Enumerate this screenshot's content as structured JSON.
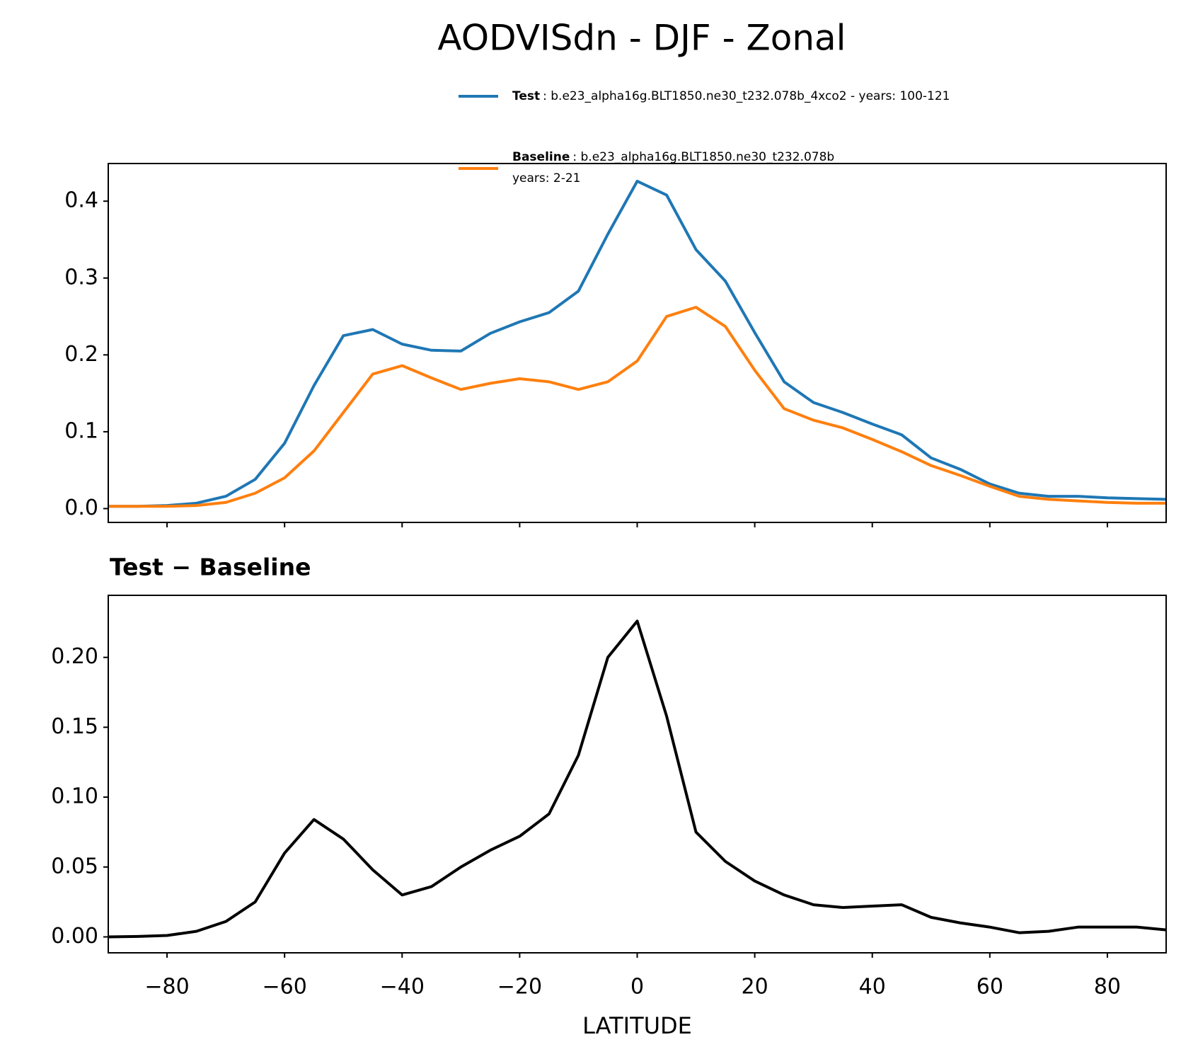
{
  "title": "AODVISdn - DJF - Zonal",
  "chart_data": [
    {
      "type": "line",
      "x": [
        -90,
        -85,
        -80,
        -75,
        -70,
        -65,
        -60,
        -55,
        -50,
        -45,
        -40,
        -35,
        -30,
        -25,
        -20,
        -15,
        -10,
        -5,
        0,
        5,
        10,
        15,
        20,
        25,
        30,
        35,
        40,
        45,
        50,
        55,
        60,
        65,
        70,
        75,
        80,
        85,
        90
      ],
      "xlim": [
        -90,
        90
      ],
      "xticks": [
        {
          "value": -80,
          "label": "−80"
        },
        {
          "value": -60,
          "label": "−60"
        },
        {
          "value": -40,
          "label": "−40"
        },
        {
          "value": -20,
          "label": "−20"
        },
        0,
        20,
        40,
        60,
        80
      ],
      "xtick_labels": false,
      "ylim": [
        -0.018,
        0.449
      ],
      "yticks": [
        {
          "value": 0,
          "label": "0.0"
        },
        0.1,
        0.2,
        0.3,
        0.4
      ],
      "series": [
        {
          "name": "Test",
          "description": [
            ": b.e23_alpha16g.BLT1850.ne30_t232.078b_4xco2 - years: 100-121"
          ],
          "color": "#1f77b4",
          "values": [
            0.003,
            0.003,
            0.004,
            0.007,
            0.016,
            0.038,
            0.085,
            0.16,
            0.225,
            0.233,
            0.214,
            0.206,
            0.205,
            0.228,
            0.243,
            0.255,
            0.283,
            0.357,
            0.426,
            0.408,
            0.337,
            0.296,
            0.229,
            0.165,
            0.138,
            0.125,
            0.11,
            0.096,
            0.066,
            0.051,
            0.032,
            0.02,
            0.016,
            0.016,
            0.014,
            0.013,
            0.012
          ]
        },
        {
          "name": "Baseline",
          "description": [
            ": b.e23_alpha16g.BLT1850.ne30_t232.078b",
            "years: 2-21"
          ],
          "color": "#ff7f0e",
          "values": [
            0.003,
            0.003,
            0.003,
            0.004,
            0.008,
            0.02,
            0.04,
            0.075,
            0.125,
            0.175,
            0.186,
            0.17,
            0.155,
            0.163,
            0.169,
            0.165,
            0.155,
            0.165,
            0.192,
            0.25,
            0.262,
            0.237,
            0.18,
            0.13,
            0.115,
            0.105,
            0.09,
            0.074,
            0.056,
            0.043,
            0.029,
            0.016,
            0.012,
            0.01,
            0.008,
            0.007,
            0.007
          ]
        }
      ]
    },
    {
      "type": "line",
      "title": "Test − Baseline",
      "xlabel": "LATITUDE",
      "x": [
        -90,
        -85,
        -80,
        -75,
        -70,
        -65,
        -60,
        -55,
        -50,
        -45,
        -40,
        -35,
        -30,
        -25,
        -20,
        -15,
        -10,
        -5,
        0,
        5,
        10,
        15,
        20,
        25,
        30,
        35,
        40,
        45,
        50,
        55,
        60,
        65,
        70,
        75,
        80,
        85,
        90
      ],
      "xlim": [
        -90,
        90
      ],
      "xticks": [
        {
          "value": -80,
          "label": "−80"
        },
        {
          "value": -60,
          "label": "−60"
        },
        {
          "value": -40,
          "label": "−40"
        },
        {
          "value": -20,
          "label": "−20"
        },
        0,
        20,
        40,
        60,
        80
      ],
      "xtick_labels": true,
      "ylim": [
        -0.0114,
        0.2444
      ],
      "yticks": [
        {
          "value": 0,
          "label": "0.00"
        },
        0.05,
        {
          "value": 0.1,
          "label": "0.10"
        },
        0.15,
        {
          "value": 0.2,
          "label": "0.20"
        }
      ],
      "series": [
        {
          "color": "#000000",
          "values": [
            0,
            0.0003,
            0.001,
            0.004,
            0.011,
            0.025,
            0.06,
            0.084,
            0.07,
            0.048,
            0.03,
            0.036,
            0.05,
            0.062,
            0.072,
            0.088,
            0.13,
            0.2,
            0.226,
            0.158,
            0.075,
            0.054,
            0.04,
            0.03,
            0.023,
            0.021,
            0.022,
            0.023,
            0.014,
            0.01,
            0.007,
            0.003,
            0.004,
            0.007,
            0.007,
            0.007,
            0.005
          ]
        }
      ]
    }
  ]
}
